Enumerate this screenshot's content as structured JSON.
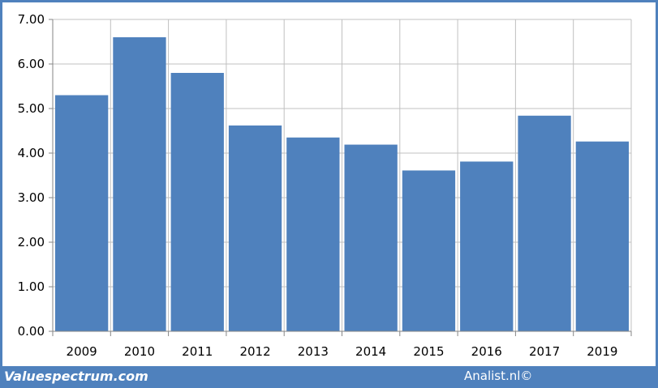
{
  "chart_data": {
    "type": "bar",
    "categories": [
      "2009",
      "2010",
      "2011",
      "2012",
      "2013",
      "2014",
      "2015",
      "2016",
      "2017",
      "2019"
    ],
    "values": [
      5.3,
      6.6,
      5.8,
      4.62,
      4.35,
      4.19,
      3.61,
      3.81,
      4.84,
      4.26
    ],
    "ylim": [
      0,
      7
    ],
    "yticks": [
      "0.00",
      "1.00",
      "2.00",
      "3.00",
      "4.00",
      "5.00",
      "6.00",
      "7.00"
    ],
    "grid": true,
    "bar_color": "#4f81bd",
    "grid_color": "#c0c0c0"
  },
  "footer": {
    "left_text": "Valuespectrum.com",
    "right_text": "Analist.nl©"
  },
  "colors": {
    "frame": "#4f81bd",
    "panel": "#ffffff"
  }
}
